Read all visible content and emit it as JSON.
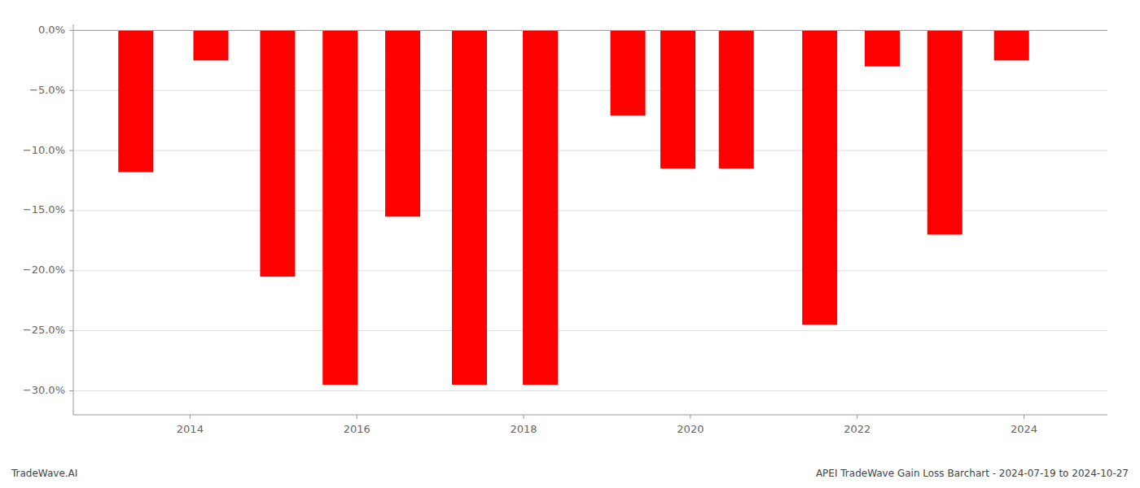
{
  "chart_data": {
    "type": "bar",
    "x": [
      2013.35,
      2014.25,
      2015.05,
      2015.8,
      2016.55,
      2017.35,
      2018.2,
      2019.25,
      2019.85,
      2020.55,
      2021.55,
      2022.3,
      2023.05,
      2023.85
    ],
    "values": [
      -0.118,
      -0.025,
      -0.205,
      -0.295,
      -0.155,
      -0.295,
      -0.295,
      -0.071,
      -0.115,
      -0.115,
      -0.245,
      -0.03,
      -0.17,
      -0.025
    ],
    "color": "#ff0000",
    "xlim": [
      2012.6,
      2025.0
    ],
    "xticks": [
      2014,
      2016,
      2018,
      2020,
      2022,
      2024
    ],
    "ylim": [
      -0.32,
      0.005
    ],
    "yticks": [
      {
        "value": 0.0,
        "label": "0.0%"
      },
      {
        "value": -0.05,
        "label": "−5.0%"
      },
      {
        "value": -0.1,
        "label": "−10.0%"
      },
      {
        "value": -0.15,
        "label": "−15.0%"
      },
      {
        "value": -0.2,
        "label": "−20.0%"
      },
      {
        "value": -0.25,
        "label": "−25.0%"
      },
      {
        "value": -0.3,
        "label": "−30.0%"
      }
    ],
    "grid": true,
    "annotations": [
      "TradeWave.AI",
      "APEI TradeWave Gain Loss Barchart - 2024-07-19 to 2024-10-27"
    ]
  }
}
